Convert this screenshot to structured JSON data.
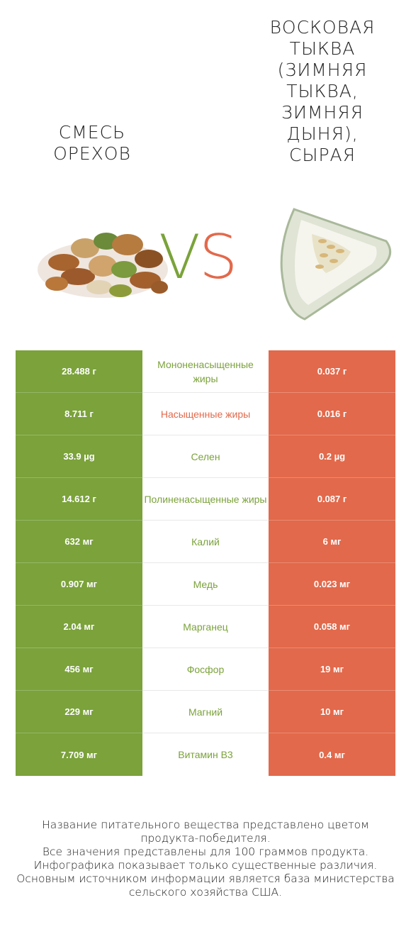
{
  "header": {
    "left_title": "Смесь\nорехов",
    "right_title": "Восковая\nтыква\n(Зимняя\nтыква,\nзимняя\nдыня),\nсырая",
    "vs_v": "V",
    "vs_s": "S"
  },
  "colors": {
    "left_accent": "#7ba23b",
    "right_accent": "#e2694b"
  },
  "images": {
    "left": "mixed-nuts-image",
    "right": "wax-gourd-slice-image"
  },
  "rows": [
    {
      "left": "28.488 г",
      "nutrient": "Мононенасыщенные жиры",
      "right": "0.037 г",
      "winner": "left"
    },
    {
      "left": "8.711 г",
      "nutrient": "Насыщенные жиры",
      "right": "0.016 г",
      "winner": "right"
    },
    {
      "left": "33.9 µg",
      "nutrient": "Селен",
      "right": "0.2 µg",
      "winner": "left"
    },
    {
      "left": "14.612 г",
      "nutrient": "Полиненасыщенные жиры",
      "right": "0.087 г",
      "winner": "left"
    },
    {
      "left": "632 мг",
      "nutrient": "Калий",
      "right": "6 мг",
      "winner": "left"
    },
    {
      "left": "0.907 мг",
      "nutrient": "Медь",
      "right": "0.023 мг",
      "winner": "left"
    },
    {
      "left": "2.04 мг",
      "nutrient": "Марганец",
      "right": "0.058 мг",
      "winner": "left"
    },
    {
      "left": "456 мг",
      "nutrient": "Фосфор",
      "right": "19 мг",
      "winner": "left"
    },
    {
      "left": "229 мг",
      "nutrient": "Магний",
      "right": "10 мг",
      "winner": "left"
    },
    {
      "left": "7.709 мг",
      "nutrient": "Витамин B3",
      "right": "0.4 мг",
      "winner": "left"
    }
  ],
  "footnote": [
    "Название питательного вещества представлено цветом",
    "продукта-победителя.",
    "Все значения представлены для 100 граммов продукта.",
    "Инфографика показывает только существенные различия.",
    "Основным источником информации является база министерства",
    "сельского хозяйства США."
  ]
}
